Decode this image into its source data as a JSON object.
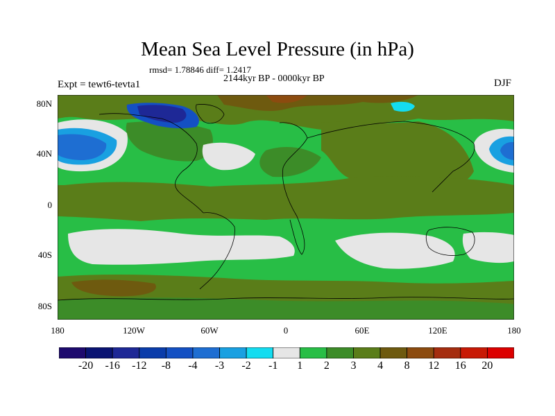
{
  "title": "Mean Sea Level Pressure (in hPa)",
  "stats": "rmsd= 1.78846  diff= 1.2417",
  "period": "2144kyr BP - 0000kyr BP",
  "experiment": "Expt = tewt6-tevta1",
  "season": "DJF",
  "lat_labels": [
    "80N",
    "40N",
    "0",
    "40S",
    "80S"
  ],
  "lon_labels": [
    "180",
    "120W",
    "60W",
    "0",
    "60E",
    "120E",
    "180"
  ],
  "colorbar": {
    "labels": [
      "-20",
      "-16",
      "-12",
      "-8",
      "-4",
      "-3",
      "-2",
      "-1",
      "1",
      "2",
      "3",
      "4",
      "8",
      "12",
      "16",
      "20"
    ],
    "colors": [
      "#1e0a6e",
      "#0a1473",
      "#1e2896",
      "#0a3caa",
      "#1450c3",
      "#1e6ed2",
      "#19a0e1",
      "#14dcf0",
      "#e6e6e6",
      "#28be46",
      "#3c8c28",
      "#5a7d19",
      "#6e5a0f",
      "#8c4b0f",
      "#a52d0f",
      "#c81905",
      "#dc0000"
    ]
  },
  "palette": {
    "land_outline": "#000000",
    "frame": "#000000"
  }
}
